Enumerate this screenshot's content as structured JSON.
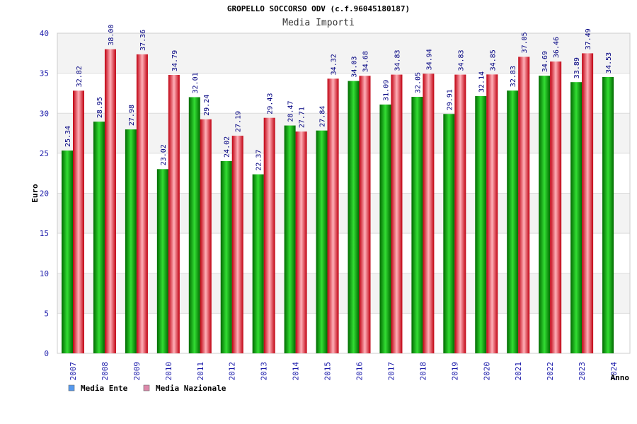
{
  "chart_data": {
    "type": "bar",
    "title": "GROPELLO SOCCORSO ODV (c.f.96045180187)",
    "subtitle": "Media Importi",
    "ylabel": "Euro",
    "xlabel": "Anno",
    "ylim": [
      0,
      40
    ],
    "yticks": [
      "0",
      "5",
      "10",
      "15",
      "20",
      "25",
      "30",
      "35",
      "40"
    ],
    "grid": "horizontal bands",
    "legend_position": "bottom-left",
    "categories": [
      "2007",
      "2008",
      "2009",
      "2010",
      "2011",
      "2012",
      "2013",
      "2014",
      "2015",
      "2016",
      "2017",
      "2018",
      "2019",
      "2020",
      "2021",
      "2022",
      "2023",
      "2024"
    ],
    "series": [
      {
        "name": "Media Ente",
        "color": "#00a000",
        "legend_color": "#5599ee",
        "values": [
          25.34,
          28.95,
          27.98,
          23.02,
          32.01,
          24.02,
          22.37,
          28.47,
          27.84,
          34.03,
          31.09,
          32.05,
          29.91,
          32.14,
          32.83,
          34.69,
          33.89,
          34.53
        ],
        "labels": [
          "25.34",
          "28.95",
          "27.98",
          "23.02",
          "32.01",
          "24.02",
          "22.37",
          "28.47",
          "27.84",
          "34.03",
          "31.09",
          "32.05",
          "29.91",
          "32.14",
          "32.83",
          "34.69",
          "33.89",
          "34.53"
        ]
      },
      {
        "name": "Media Nazionale",
        "color": "#e01020",
        "legend_color": "#dd88aa",
        "values": [
          32.82,
          38.0,
          37.36,
          34.79,
          29.24,
          27.19,
          29.43,
          27.71,
          34.32,
          34.68,
          34.83,
          34.94,
          34.83,
          34.85,
          37.05,
          36.46,
          37.49,
          null
        ],
        "labels": [
          "32.82",
          "38.00",
          "37.36",
          "34.79",
          "29.24",
          "27.19",
          "29.43",
          "27.71",
          "34.32",
          "34.68",
          "34.83",
          "34.94",
          "34.83",
          "34.85",
          "37.05",
          "36.46",
          "37.49",
          ""
        ]
      }
    ]
  }
}
